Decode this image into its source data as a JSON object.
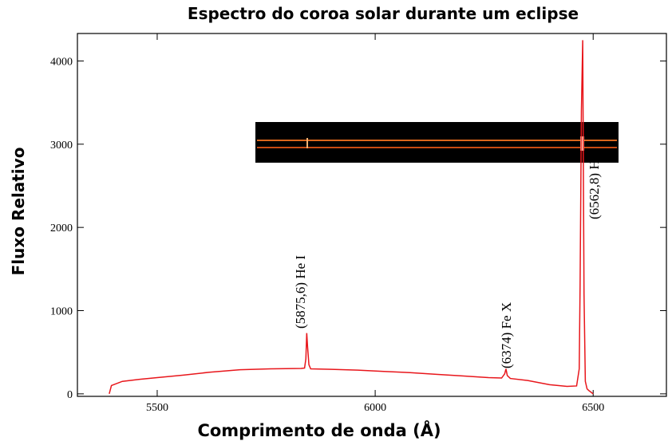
{
  "chart_data": {
    "type": "line",
    "title": "Espectro do coroa solar durante um eclipse",
    "x_label": "Comprimento de onda (Å)",
    "y_label": "Fluxo Relativo",
    "annotations": [
      "(5875,6) He I",
      "(6374) Fe X",
      "(6562,8) Hα"
    ],
    "xlim": [
      5317,
      6668
    ],
    "ylim": [
      -30,
      4330
    ],
    "xticks": [
      5500,
      6000,
      6500
    ],
    "yticks": [
      0,
      1000,
      2000,
      3000,
      4000
    ],
    "series": [
      {
        "color": "#e8161b",
        "x": [
          5390,
          5395,
          5420,
          5460,
          5500,
          5560,
          5620,
          5690,
          5760,
          5830,
          5838,
          5841,
          5843,
          5845,
          5848,
          5852,
          5900,
          5960,
          6020,
          6080,
          6140,
          6200,
          6260,
          6290,
          6297,
          6300,
          6303,
          6310,
          6350,
          6400,
          6440,
          6462,
          6468,
          6470,
          6473,
          6476,
          6479,
          6482,
          6486,
          6490,
          6495,
          6500
        ],
        "values": [
          0,
          100,
          150,
          175,
          195,
          225,
          260,
          290,
          300,
          305,
          310,
          420,
          730,
          560,
          350,
          300,
          295,
          285,
          270,
          255,
          235,
          215,
          195,
          190,
          240,
          300,
          220,
          185,
          160,
          110,
          90,
          95,
          300,
          1300,
          3400,
          4250,
          1200,
          150,
          60,
          40,
          20,
          0
        ]
      }
    ]
  }
}
